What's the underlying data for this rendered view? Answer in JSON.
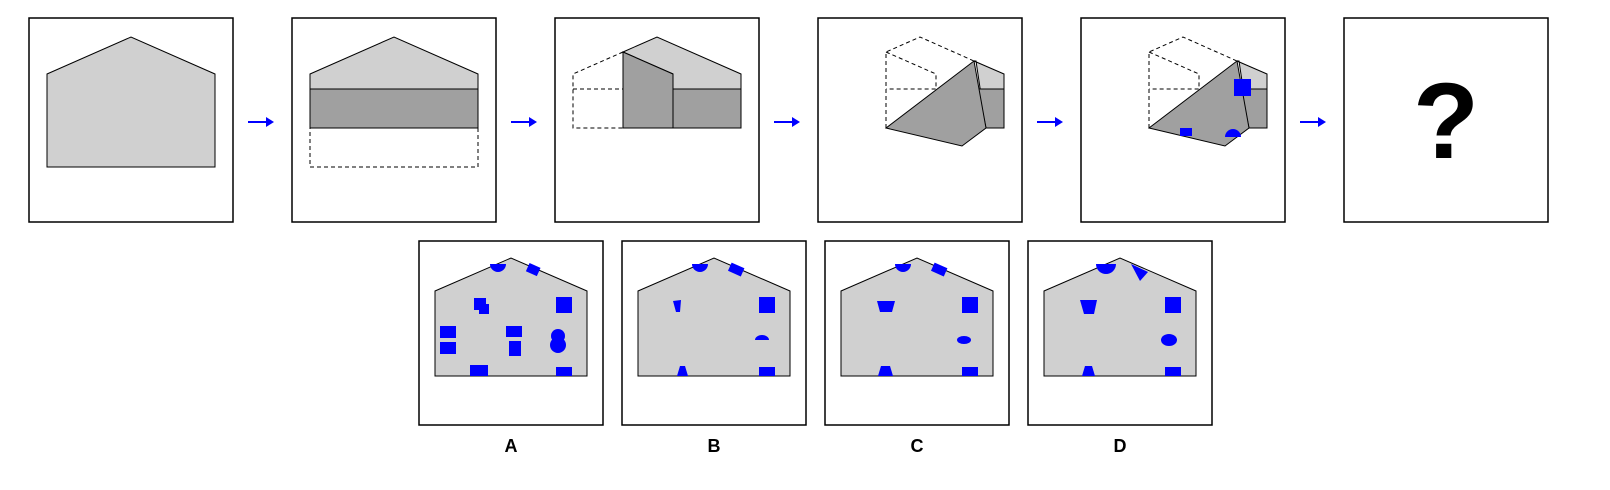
{
  "colors": {
    "paper": "#d0d0d0",
    "paper_folded": "#a0a0a0",
    "hole": "#0000ff",
    "arrow": "#0000ff",
    "outline": "#000000"
  },
  "question_mark": "?",
  "steps": [
    "unfolded-paper",
    "fold-bottom-up",
    "fold-left-over",
    "fold-diagonal",
    "punch-holes"
  ],
  "options": [
    {
      "label": "A"
    },
    {
      "label": "B"
    },
    {
      "label": "C"
    },
    {
      "label": "D"
    }
  ]
}
